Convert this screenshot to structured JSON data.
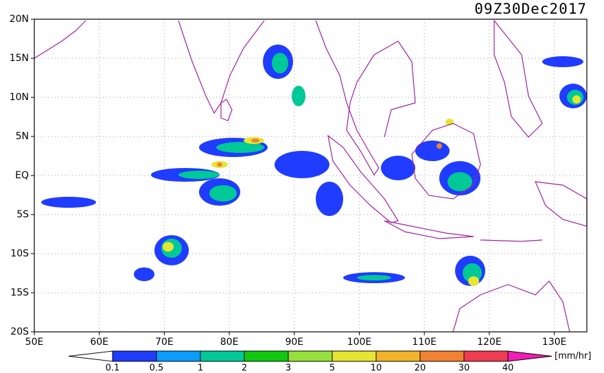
{
  "map": {
    "timestamp": "09Z30Dec2017",
    "lat_labels": [
      "20N",
      "15N",
      "10N",
      "5N",
      "EQ",
      "5S",
      "10S",
      "15S",
      "20S"
    ],
    "lon_labels": [
      "50E",
      "60E",
      "70E",
      "80E",
      "90E",
      "100E",
      "110E",
      "120E",
      "130E"
    ]
  },
  "colorbar": {
    "levels": [
      0.1,
      0.5,
      1,
      2,
      3,
      5,
      10,
      20,
      30,
      40
    ],
    "colors": [
      "#1f3cff",
      "#0a9cff",
      "#00c896",
      "#10c810",
      "#96e03c",
      "#e6e632",
      "#f0b428",
      "#f08232",
      "#f03c50",
      "#f01eb4"
    ],
    "unit": "[mm/hr]"
  }
}
